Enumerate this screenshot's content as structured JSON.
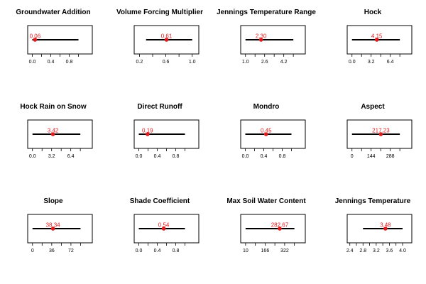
{
  "colors": {
    "point": "#e31a1c",
    "line": "#000000",
    "frame": "#000000"
  },
  "chart_data": [
    {
      "type": "scatter",
      "title": "Groundwater Addition",
      "range": [
        0.0,
        1.0
      ],
      "value": 0.06,
      "value_label": "0.06",
      "ticks": [
        0.0,
        0.2,
        0.4,
        0.6,
        0.8,
        1.0
      ],
      "tick_labels": [
        "0.0",
        "",
        "0.4",
        "",
        "0.8",
        ""
      ],
      "xlim": [
        -0.1,
        1.3
      ]
    },
    {
      "type": "scatter",
      "title": "Volume Forcing Multiplier",
      "range": [
        0.3,
        1.0
      ],
      "value": 0.61,
      "value_label": "0.61",
      "ticks": [
        0.2,
        0.4,
        0.6,
        0.8,
        1.0
      ],
      "tick_labels": [
        "0.2",
        "",
        "0.6",
        "",
        "1.0"
      ],
      "xlim": [
        0.12,
        1.1
      ]
    },
    {
      "type": "scatter",
      "title": "Jennings Temperature Range",
      "range": [
        1.0,
        5.0
      ],
      "value": 2.3,
      "value_label": "2.30",
      "ticks": [
        1.0,
        1.8,
        2.6,
        3.4,
        4.2,
        5.0
      ],
      "tick_labels": [
        "1.0",
        "",
        "2.6",
        "",
        "4.2",
        ""
      ],
      "xlim": [
        0.6,
        6.0
      ]
    },
    {
      "type": "scatter",
      "title": "Hock",
      "range": [
        0.0,
        8.0
      ],
      "value": 4.15,
      "value_label": "4.15",
      "ticks": [
        0.0,
        1.6,
        3.2,
        4.8,
        6.4,
        8.0
      ],
      "tick_labels": [
        "0.0",
        "",
        "3.2",
        "",
        "6.4",
        ""
      ],
      "xlim": [
        -0.8,
        10.0
      ]
    },
    {
      "type": "scatter",
      "title": "Hock Rain on Snow",
      "range": [
        0.0,
        8.0
      ],
      "value": 3.42,
      "value_label": "3.42",
      "ticks": [
        0.0,
        1.6,
        3.2,
        4.8,
        6.4,
        8.0
      ],
      "tick_labels": [
        "0.0",
        "",
        "3.2",
        "",
        "6.4",
        ""
      ],
      "xlim": [
        -0.8,
        10.0
      ]
    },
    {
      "type": "scatter",
      "title": "Direct Runoff",
      "range": [
        0.0,
        1.0
      ],
      "value": 0.19,
      "value_label": "0.19",
      "ticks": [
        0.0,
        0.2,
        0.4,
        0.6,
        0.8,
        1.0
      ],
      "tick_labels": [
        "0.0",
        "",
        "0.4",
        "",
        "0.8",
        ""
      ],
      "xlim": [
        -0.1,
        1.3
      ]
    },
    {
      "type": "scatter",
      "title": "Mondro",
      "range": [
        0.0,
        1.0
      ],
      "value": 0.45,
      "value_label": "0.45",
      "ticks": [
        0.0,
        0.2,
        0.4,
        0.6,
        0.8,
        1.0
      ],
      "tick_labels": [
        "0.0",
        "",
        "0.4",
        "",
        "0.8",
        ""
      ],
      "xlim": [
        -0.1,
        1.3
      ]
    },
    {
      "type": "scatter",
      "title": "Aspect",
      "range": [
        0,
        360
      ],
      "value": 217.23,
      "value_label": "217.23",
      "ticks": [
        0,
        72,
        144,
        216,
        288,
        360
      ],
      "tick_labels": [
        "0",
        "",
        "144",
        "",
        "288",
        ""
      ],
      "xlim": [
        -36,
        450
      ]
    },
    {
      "type": "scatter",
      "title": "Slope",
      "range": [
        0,
        90
      ],
      "value": 38.34,
      "value_label": "38.34",
      "ticks": [
        0,
        18,
        36,
        54,
        72,
        90
      ],
      "tick_labels": [
        "0",
        "",
        "36",
        "",
        "72",
        ""
      ],
      "xlim": [
        -9,
        112
      ]
    },
    {
      "type": "scatter",
      "title": "Shade Coefficient",
      "range": [
        0.0,
        1.0
      ],
      "value": 0.54,
      "value_label": "0.54",
      "ticks": [
        0.0,
        0.2,
        0.4,
        0.6,
        0.8,
        1.0
      ],
      "tick_labels": [
        "0.0",
        "",
        "0.4",
        "",
        "0.8",
        ""
      ],
      "xlim": [
        -0.1,
        1.3
      ]
    },
    {
      "type": "scatter",
      "title": "Max Soil Water Content",
      "range": [
        10,
        400
      ],
      "value": 282.67,
      "value_label": "282.67",
      "ticks": [
        10,
        88,
        166,
        244,
        322,
        400
      ],
      "tick_labels": [
        "10",
        "",
        "166",
        "",
        "322",
        ""
      ],
      "xlim": [
        -29,
        487
      ]
    },
    {
      "type": "scatter",
      "title": "Jennings Temperature",
      "range": [
        2.8,
        4.0
      ],
      "value": 3.48,
      "value_label": "3.48",
      "ticks": [
        2.4,
        2.6,
        2.8,
        3.0,
        3.2,
        3.4,
        3.6,
        3.8,
        4.0
      ],
      "tick_labels": [
        "2.4",
        "",
        "2.8",
        "",
        "3.2",
        "",
        "3.6",
        "",
        "4.0"
      ],
      "xlim": [
        2.32,
        4.28
      ]
    }
  ]
}
